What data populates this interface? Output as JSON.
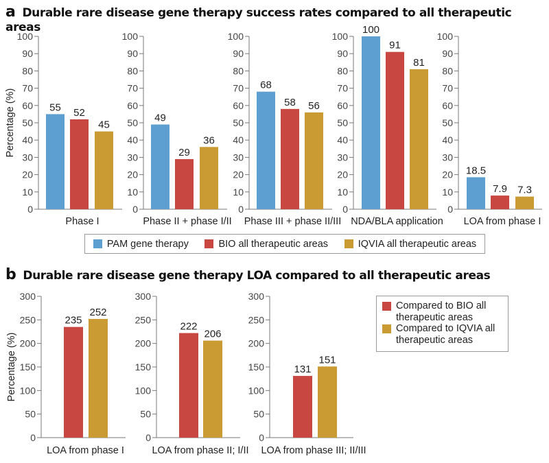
{
  "panel_a": {
    "letter": "a",
    "title": "Durable rare disease gene therapy success rates compared to all therapeutic areas",
    "legend": [
      {
        "label": "PAM gene therapy",
        "color": "#5e9fd1"
      },
      {
        "label": "BIO all therapeutic areas",
        "color": "#c94741"
      },
      {
        "label": "IQVIA all therapeutic areas",
        "color": "#c99b32"
      }
    ]
  },
  "panel_b": {
    "letter": "b",
    "title": "Durable rare disease gene therapy LOA compared to all therapeutic areas",
    "legend": [
      {
        "label": "Compared to BIO all therapeutic areas",
        "color": "#c94741"
      },
      {
        "label": "Compared to IQVIA all therapeutic areas",
        "color": "#c99b32"
      }
    ]
  },
  "chart_data": [
    {
      "type": "bar",
      "panel": "a",
      "title": "Durable rare disease gene therapy success rates compared to all therapeutic areas",
      "ylabel": "Percentage (%)",
      "ylim": [
        0,
        100
      ],
      "yticks": [
        0,
        10,
        20,
        30,
        40,
        50,
        60,
        70,
        80,
        90,
        100
      ],
      "categories": [
        "Phase I",
        "Phase II + phase I/II",
        "Phase III + phase II/III",
        "NDA/BLA application",
        "LOA from phase I"
      ],
      "series": [
        {
          "name": "PAM gene therapy",
          "color": "#5e9fd1",
          "values": [
            55,
            49,
            68,
            100,
            18.5
          ],
          "labels": [
            "55",
            "49",
            "68",
            "100",
            "18.5"
          ]
        },
        {
          "name": "BIO all therapeutic areas",
          "color": "#c94741",
          "values": [
            52,
            29,
            58,
            91,
            7.9
          ],
          "labels": [
            "52",
            "29",
            "58",
            "91",
            "7.9"
          ]
        },
        {
          "name": "IQVIA all therapeutic areas",
          "color": "#c99b32",
          "values": [
            45,
            36,
            56,
            81,
            7.3
          ],
          "labels": [
            "45",
            "36",
            "56",
            "81",
            "7.3"
          ]
        }
      ],
      "legend_position": "bottom"
    },
    {
      "type": "bar",
      "panel": "b",
      "title": "Durable rare disease gene therapy LOA compared to all therapeutic areas",
      "ylabel": "Percentage (%)",
      "ylim": [
        0,
        300
      ],
      "yticks": [
        0,
        50,
        100,
        150,
        200,
        250,
        300
      ],
      "categories": [
        "LOA from phase I",
        "LOA from phase II; I/II",
        "LOA from phase III; II/III"
      ],
      "series": [
        {
          "name": "Compared to BIO all therapeutic areas",
          "color": "#c94741",
          "values": [
            235,
            222,
            131
          ],
          "labels": [
            "235",
            "222",
            "131"
          ]
        },
        {
          "name": "Compared to IQVIA all therapeutic areas",
          "color": "#c99b32",
          "values": [
            252,
            206,
            151
          ],
          "labels": [
            "252",
            "206",
            "151"
          ]
        }
      ],
      "legend_position": "right"
    }
  ]
}
